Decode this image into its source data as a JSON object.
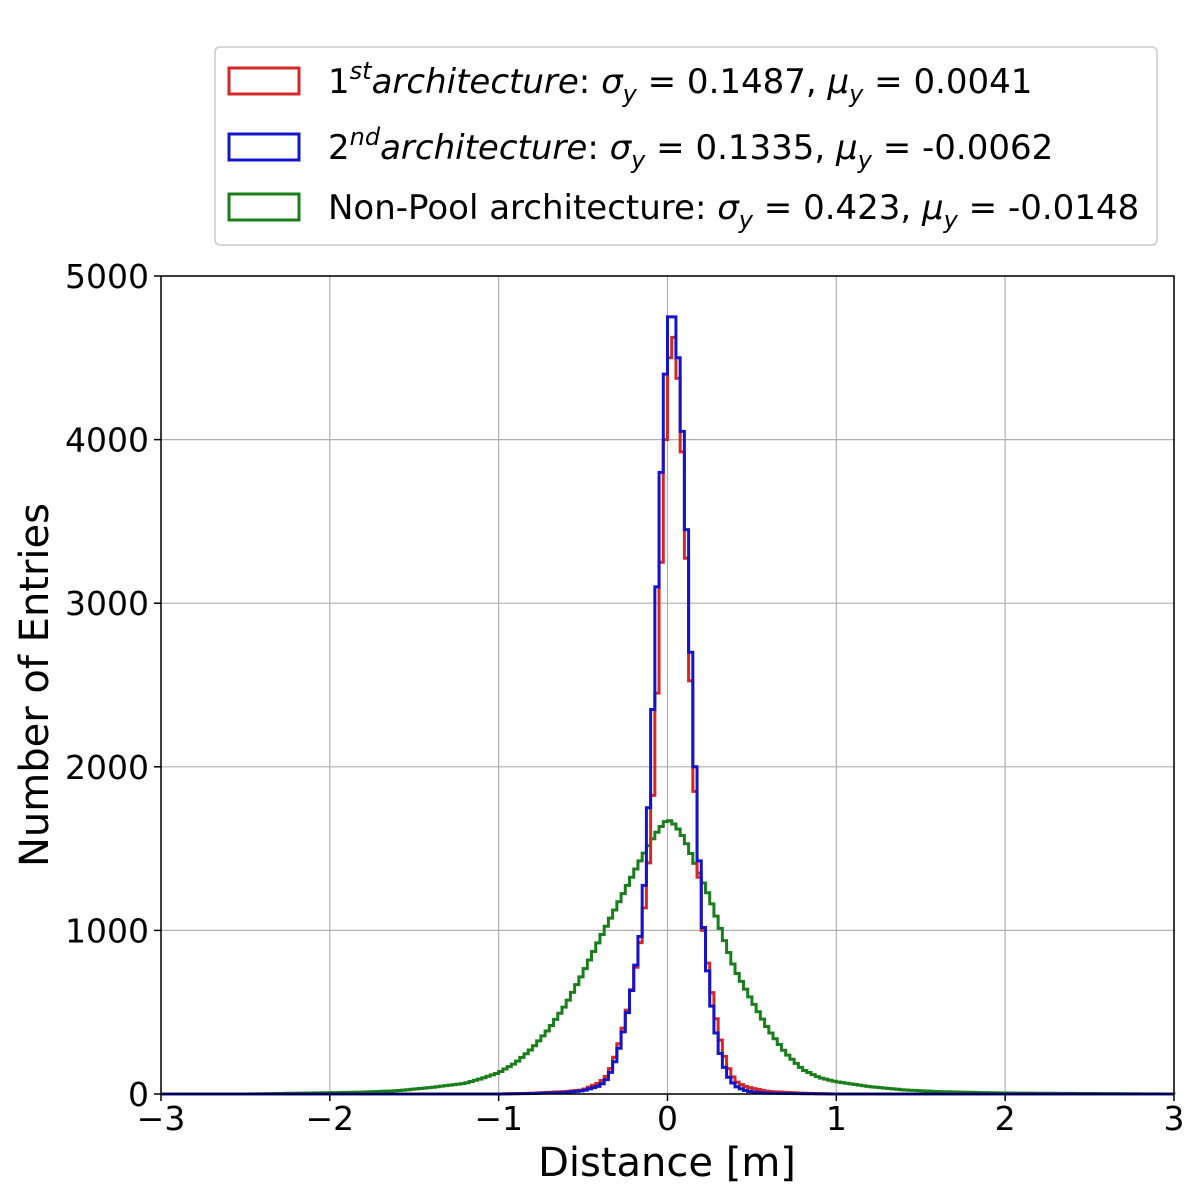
{
  "chart_data": {
    "type": "histogram",
    "xlabel": "Distance [m]",
    "ylabel": "Number of Entries",
    "xlim": [
      -3,
      3
    ],
    "ylim": [
      0,
      5000
    ],
    "xticks": [
      -3,
      -2,
      -1,
      0,
      1,
      2,
      3
    ],
    "xtick_labels": [
      "−3",
      "−2",
      "−1",
      "0",
      "1",
      "2",
      "3"
    ],
    "yticks": [
      0,
      1000,
      2000,
      3000,
      4000,
      5000
    ],
    "ytick_labels": [
      "0",
      "1000",
      "2000",
      "3000",
      "4000",
      "5000"
    ],
    "grid": true,
    "legend_position": "above plot, right",
    "series": [
      {
        "name": "1st architecture: σy = 0.1487, μy = 0.0041",
        "legend": {
          "num": "1",
          "sup": "st",
          "word": "architecture",
          "colon": ": ",
          "sigma": "0.1487",
          "mu": "0.0041"
        },
        "color": "#d62728",
        "points": [
          [
            -1.0,
            0
          ],
          [
            -0.8,
            5
          ],
          [
            -0.6,
            15
          ],
          [
            -0.5,
            25
          ],
          [
            -0.4,
            70
          ],
          [
            -0.35,
            120
          ],
          [
            -0.3,
            260
          ],
          [
            -0.25,
            450
          ],
          [
            -0.2,
            700
          ],
          [
            -0.15,
            1000
          ],
          [
            -0.1,
            1550
          ],
          [
            -0.075,
            2100
          ],
          [
            -0.05,
            2800
          ],
          [
            -0.025,
            3700
          ],
          [
            0.0,
            4300
          ],
          [
            0.025,
            4700
          ],
          [
            0.05,
            4550
          ],
          [
            0.075,
            4200
          ],
          [
            0.1,
            3650
          ],
          [
            0.125,
            2900
          ],
          [
            0.15,
            2150
          ],
          [
            0.175,
            1550
          ],
          [
            0.2,
            1100
          ],
          [
            0.25,
            700
          ],
          [
            0.3,
            380
          ],
          [
            0.35,
            180
          ],
          [
            0.4,
            80
          ],
          [
            0.45,
            50
          ],
          [
            0.5,
            35
          ],
          [
            0.6,
            15
          ],
          [
            0.8,
            5
          ],
          [
            1.0,
            0
          ]
        ]
      },
      {
        "name": "2nd architecture: σy = 0.1335, μy = -0.0062",
        "legend": {
          "num": "2",
          "sup": "nd",
          "word": "architecture",
          "colon": ": ",
          "sigma": "0.1335",
          "mu": "-0.0062"
        },
        "color": "#1515c8",
        "points": [
          [
            -1.0,
            0
          ],
          [
            -0.8,
            3
          ],
          [
            -0.6,
            10
          ],
          [
            -0.5,
            20
          ],
          [
            -0.4,
            50
          ],
          [
            -0.35,
            100
          ],
          [
            -0.3,
            230
          ],
          [
            -0.25,
            430
          ],
          [
            -0.2,
            700
          ],
          [
            -0.15,
            1050
          ],
          [
            -0.125,
            1500
          ],
          [
            -0.1,
            2000
          ],
          [
            -0.075,
            2700
          ],
          [
            -0.05,
            3500
          ],
          [
            -0.025,
            4100
          ],
          [
            0.0,
            4700
          ],
          [
            0.025,
            4800
          ],
          [
            0.05,
            4700
          ],
          [
            0.075,
            4300
          ],
          [
            0.1,
            3800
          ],
          [
            0.125,
            3100
          ],
          [
            0.15,
            2300
          ],
          [
            0.175,
            1700
          ],
          [
            0.2,
            1150
          ],
          [
            0.25,
            620
          ],
          [
            0.3,
            290
          ],
          [
            0.35,
            120
          ],
          [
            0.4,
            50
          ],
          [
            0.45,
            25
          ],
          [
            0.5,
            12
          ],
          [
            0.6,
            5
          ],
          [
            0.8,
            2
          ],
          [
            1.0,
            0
          ]
        ]
      },
      {
        "name": "Non-Pool architecture: σy = 0.423, μy = -0.0148",
        "legend": {
          "num": "",
          "sup": "",
          "word": "Non-Pool architecture",
          "colon": ": ",
          "sigma": "0.423",
          "mu": "-0.0148"
        },
        "color": "#1a7f1a",
        "points": [
          [
            -2.5,
            0
          ],
          [
            -2.0,
            8
          ],
          [
            -1.8,
            12
          ],
          [
            -1.6,
            20
          ],
          [
            -1.4,
            40
          ],
          [
            -1.2,
            65
          ],
          [
            -1.1,
            95
          ],
          [
            -1.0,
            130
          ],
          [
            -0.9,
            190
          ],
          [
            -0.8,
            280
          ],
          [
            -0.7,
            400
          ],
          [
            -0.6,
            550
          ],
          [
            -0.5,
            740
          ],
          [
            -0.4,
            950
          ],
          [
            -0.3,
            1150
          ],
          [
            -0.2,
            1350
          ],
          [
            -0.15,
            1450
          ],
          [
            -0.1,
            1540
          ],
          [
            -0.05,
            1620
          ],
          [
            0.0,
            1680
          ],
          [
            0.05,
            1640
          ],
          [
            0.1,
            1560
          ],
          [
            0.15,
            1440
          ],
          [
            0.2,
            1320
          ],
          [
            0.25,
            1200
          ],
          [
            0.3,
            1050
          ],
          [
            0.35,
            900
          ],
          [
            0.4,
            760
          ],
          [
            0.5,
            570
          ],
          [
            0.6,
            390
          ],
          [
            0.7,
            250
          ],
          [
            0.8,
            150
          ],
          [
            0.9,
            100
          ],
          [
            1.0,
            75
          ],
          [
            1.2,
            45
          ],
          [
            1.4,
            25
          ],
          [
            1.6,
            15
          ],
          [
            1.8,
            10
          ],
          [
            2.0,
            6
          ],
          [
            2.5,
            3
          ],
          [
            3.0,
            0
          ]
        ]
      }
    ]
  }
}
